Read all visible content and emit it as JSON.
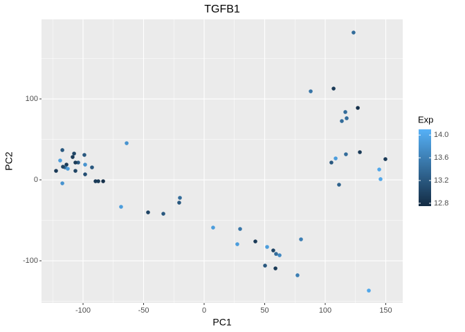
{
  "chart_data": {
    "type": "scatter",
    "title": "TGFB1",
    "x_label": "PC1",
    "y_label": "PC2",
    "legend_title": "Exp",
    "x": [
      123.4,
      88,
      106.9,
      126.9,
      116.6,
      117.7,
      113.7,
      128.6,
      117.1,
      149.7,
      108.6,
      105.1,
      144.6,
      145.7,
      111.4,
      80,
      136,
      77.1,
      59.4,
      62.3,
      57.1,
      52,
      58.9,
      50.3,
      42.3,
      29.7,
      27.4,
      7.4,
      -20,
      -20.6,
      -33.7,
      -46.3,
      -68.6,
      -64,
      -83.4,
      -89.7,
      -87.4,
      -92.6,
      -98.3,
      -98.3,
      -98.9,
      -104,
      -106.3,
      -106.3,
      -108.6,
      -107.4,
      -113.7,
      -114.9,
      -116.6,
      -112.6,
      -117.1,
      -118.9,
      -122.3,
      -117.1
    ],
    "y": [
      182,
      109.4,
      112.8,
      88.9,
      83.8,
      76.1,
      72.6,
      34.2,
      31.6,
      25.6,
      26.5,
      21.4,
      12.8,
      0.9,
      -6,
      -73.5,
      -136.8,
      -117.9,
      -91.5,
      -93.2,
      -87.2,
      -82.9,
      -109.4,
      -106,
      -76.1,
      -60.7,
      -79.5,
      -59,
      -22.2,
      -28.2,
      -41.9,
      -40.2,
      -33.3,
      45.3,
      -1.7,
      -1.7,
      -1.7,
      15.4,
      6.8,
      18.8,
      30.8,
      21.4,
      21.4,
      11.1,
      28.2,
      32.5,
      18.8,
      15.4,
      16.2,
      13.7,
      36.8,
      23.9,
      11.1,
      -4.3
    ],
    "color_values": [
      13.4,
      13.5,
      12.9,
      12.8,
      13.4,
      13.4,
      13.4,
      12.9,
      13.4,
      12.9,
      13.9,
      13.2,
      14.0,
      14.0,
      13.3,
      13.6,
      14.0,
      13.6,
      13.4,
      13.7,
      13.0,
      13.9,
      12.9,
      13.2,
      12.9,
      13.5,
      13.9,
      13.9,
      13.4,
      13.2,
      13.2,
      13.0,
      13.9,
      13.8,
      12.8,
      12.9,
      12.9,
      13.2,
      13.1,
      13.8,
      13.2,
      13.2,
      12.9,
      13.0,
      12.9,
      13.0,
      12.9,
      13.4,
      13.0,
      13.9,
      13.2,
      13.9,
      12.9,
      13.8
    ],
    "color_low": "#132B43",
    "color_high": "#56B1F7",
    "color_lim": [
      12.75,
      14.1
    ],
    "color_ticks": [
      12.8,
      13.2,
      13.6,
      {
        "value": 14,
        "label": "14.0"
      }
    ],
    "xlim": [
      -134.3,
      164
    ],
    "ylim": [
      -152.1,
      198.3
    ],
    "xticks": [
      -100,
      -50,
      0,
      50,
      100,
      150
    ],
    "yticks": [
      -100,
      0,
      100
    ],
    "x_minor_ticks": [
      -125,
      -75,
      -25,
      25,
      75,
      125
    ],
    "y_minor_ticks": [
      -150,
      -50,
      50,
      150
    ],
    "grid": true,
    "panel_color": "#EBEBEB",
    "legend_position": "right"
  }
}
